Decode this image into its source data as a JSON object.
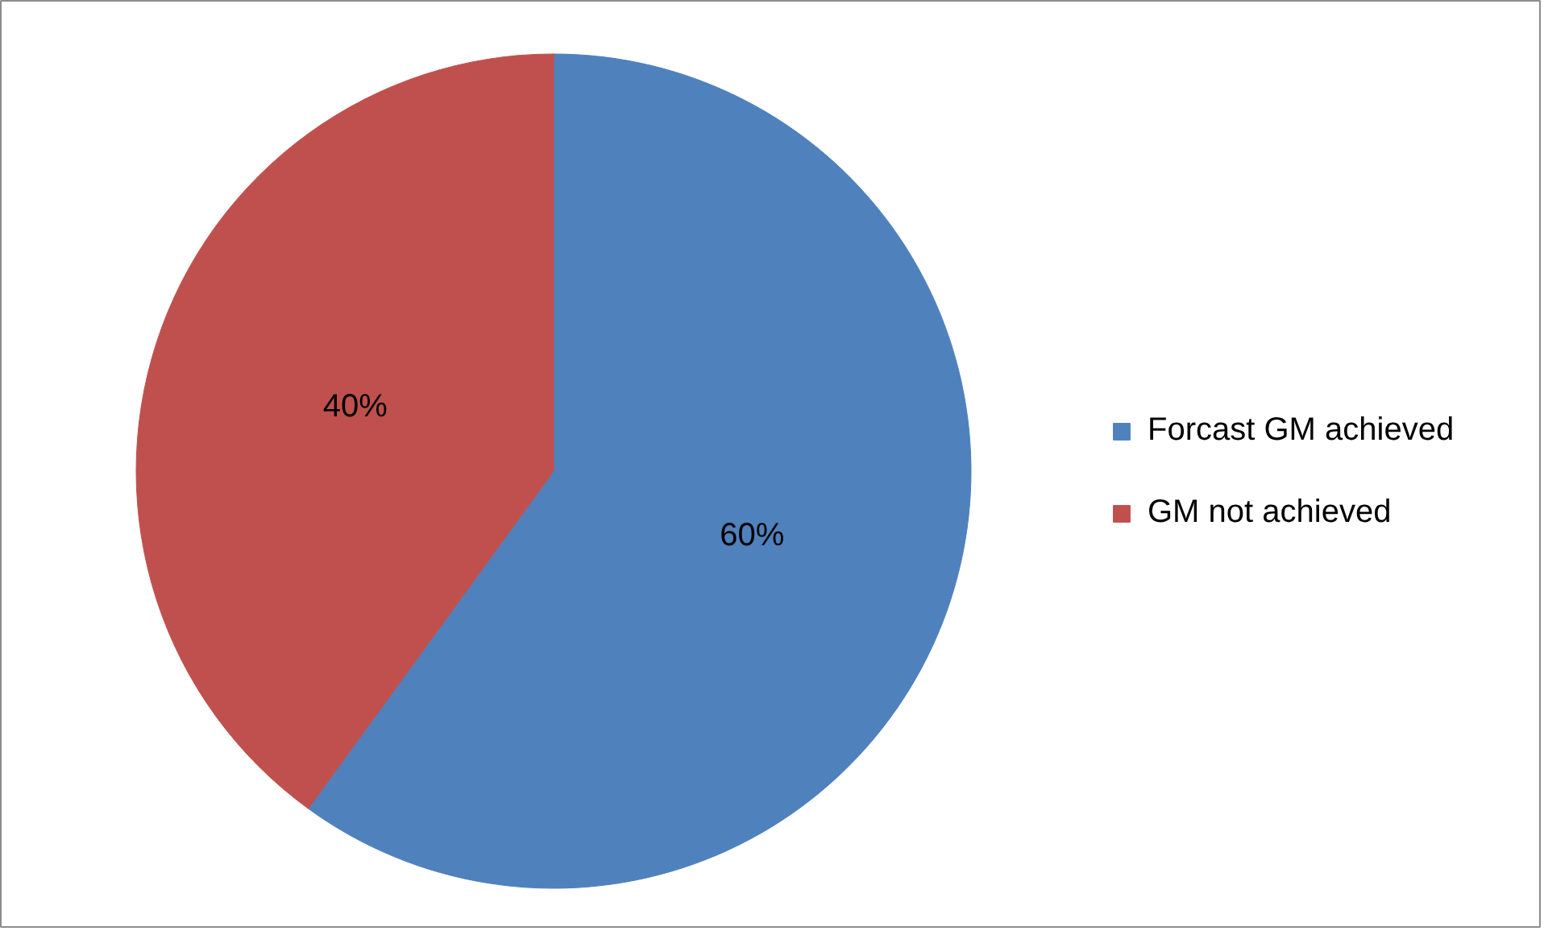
{
  "chart_data": {
    "type": "pie",
    "categories": [
      "Forcast GM achieved",
      "GM not achieved"
    ],
    "values": [
      60,
      40
    ],
    "colors": [
      "#4f81bd",
      "#c0504d"
    ],
    "value_labels": [
      "60%",
      "40%"
    ],
    "legend": "right"
  }
}
